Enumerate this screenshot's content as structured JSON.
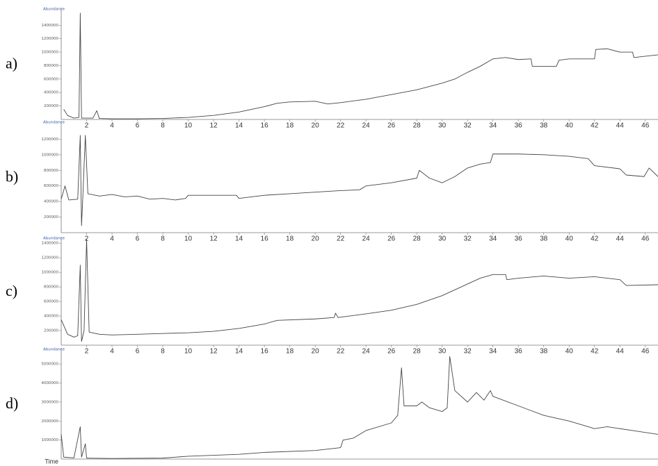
{
  "chart_data": [
    {
      "type": "line",
      "label": "a)",
      "y_label": "Abundance",
      "color": "#444444",
      "xlim": [
        0,
        47
      ],
      "ylim": [
        0,
        1620000
      ],
      "xticks": [
        2,
        4,
        6,
        8,
        10,
        12,
        14,
        16,
        18,
        20,
        22,
        24,
        26,
        28,
        30,
        32,
        34,
        36,
        38,
        40,
        42,
        44,
        46
      ],
      "yticks": [
        200000,
        400000,
        600000,
        800000,
        1000000,
        1200000,
        1400000
      ],
      "x": [
        0.2,
        0.5,
        1,
        1.4,
        1.5,
        1.6,
        2.5,
        2.8,
        3,
        4,
        6,
        8,
        10,
        12,
        14,
        16,
        17,
        18,
        20,
        21,
        22,
        24,
        26,
        28,
        30,
        31,
        31.2,
        32,
        33,
        34,
        35,
        36,
        37,
        37.1,
        39,
        39.2,
        40,
        42,
        42.1,
        43,
        44,
        45,
        45.1,
        47
      ],
      "values": [
        150000,
        60000,
        20000,
        30000,
        1580000,
        20000,
        20000,
        130000,
        15000,
        10000,
        10000,
        15000,
        30000,
        60000,
        110000,
        190000,
        240000,
        260000,
        270000,
        230000,
        250000,
        300000,
        370000,
        440000,
        540000,
        600000,
        620000,
        700000,
        790000,
        900000,
        920000,
        890000,
        900000,
        790000,
        790000,
        880000,
        900000,
        900000,
        1040000,
        1050000,
        1000000,
        1000000,
        920000,
        960000
      ]
    },
    {
      "type": "line",
      "label": "b)",
      "y_label": "Abundance",
      "color": "#444444",
      "xlim": [
        0,
        47
      ],
      "ylim": [
        0,
        1400000
      ],
      "xticks": [
        2,
        4,
        6,
        8,
        10,
        12,
        14,
        16,
        18,
        20,
        22,
        24,
        26,
        28,
        30,
        32,
        34,
        36,
        38,
        40,
        42,
        44,
        46
      ],
      "yticks": [
        200000,
        400000,
        600000,
        800000,
        1000000,
        1200000
      ],
      "x": [
        0,
        0.3,
        0.6,
        1.3,
        1.5,
        1.6,
        1.7,
        1.9,
        2.1,
        3,
        4,
        5,
        6,
        7,
        8,
        9,
        9.8,
        10,
        13.8,
        14,
        16,
        18,
        20,
        22,
        23.5,
        24,
        26,
        28,
        28.2,
        29,
        30,
        31,
        32,
        33,
        33.8,
        34,
        36,
        38,
        40,
        41.5,
        42,
        44,
        44.5,
        45.9,
        46.3,
        47
      ],
      "values": [
        430000,
        600000,
        420000,
        430000,
        1250000,
        90000,
        450000,
        1250000,
        500000,
        470000,
        490000,
        460000,
        470000,
        430000,
        440000,
        420000,
        440000,
        480000,
        480000,
        440000,
        480000,
        500000,
        520000,
        540000,
        550000,
        600000,
        640000,
        700000,
        800000,
        700000,
        640000,
        720000,
        830000,
        880000,
        900000,
        1010000,
        1010000,
        1000000,
        980000,
        950000,
        860000,
        820000,
        740000,
        720000,
        830000,
        720000
      ]
    },
    {
      "type": "line",
      "label": "c)",
      "y_label": "Abundance",
      "color": "#444444",
      "xlim": [
        0,
        47
      ],
      "ylim": [
        0,
        1450000
      ],
      "xticks": [
        2,
        4,
        6,
        8,
        10,
        12,
        14,
        16,
        18,
        20,
        22,
        24,
        26,
        28,
        30,
        32,
        34,
        36,
        38,
        40,
        42,
        44,
        46
      ],
      "yticks": [
        200000,
        400000,
        600000,
        800000,
        1000000,
        1200000,
        1400000
      ],
      "x": [
        0,
        0.5,
        1,
        1.3,
        1.5,
        1.6,
        1.8,
        2,
        2.2,
        3,
        4,
        6,
        8,
        10,
        12,
        14,
        16,
        17,
        20,
        21.5,
        21.6,
        21.8,
        24,
        26,
        28,
        30,
        32,
        33,
        34,
        35,
        35.1,
        36,
        38,
        40,
        42,
        44,
        44.5,
        47
      ],
      "values": [
        350000,
        150000,
        110000,
        130000,
        1100000,
        50000,
        200000,
        1450000,
        180000,
        150000,
        140000,
        150000,
        160000,
        170000,
        190000,
        230000,
        290000,
        340000,
        360000,
        380000,
        440000,
        380000,
        430000,
        480000,
        560000,
        680000,
        840000,
        920000,
        970000,
        970000,
        900000,
        920000,
        950000,
        920000,
        940000,
        900000,
        820000,
        830000
      ]
    },
    {
      "type": "line",
      "label": "d)",
      "y_label": "Abundance",
      "x_label": "Time",
      "color": "#444444",
      "xlim": [
        0,
        47
      ],
      "ylim": [
        0,
        5700000
      ],
      "yticks": [
        1000000,
        2000000,
        3000000,
        4000000,
        5000000
      ],
      "x": [
        0,
        0.2,
        1,
        1.5,
        1.6,
        1.9,
        2,
        4,
        8,
        10,
        14,
        16,
        20,
        22,
        22.2,
        23,
        24,
        26,
        26.5,
        26.8,
        27,
        28,
        28.4,
        29,
        30,
        30.4,
        30.6,
        31,
        32,
        32.7,
        33.3,
        33.8,
        34,
        36,
        38,
        40,
        41,
        42,
        43,
        45,
        47
      ],
      "values": [
        1300000,
        100000,
        60000,
        1700000,
        100000,
        800000,
        50000,
        30000,
        50000,
        150000,
        250000,
        350000,
        450000,
        600000,
        1000000,
        1100000,
        1500000,
        1900000,
        2300000,
        4800000,
        2800000,
        2800000,
        3000000,
        2700000,
        2500000,
        2700000,
        5400000,
        3600000,
        3000000,
        3500000,
        3100000,
        3600000,
        3300000,
        2800000,
        2300000,
        2000000,
        1800000,
        1600000,
        1700000,
        1500000,
        1300000
      ]
    }
  ]
}
